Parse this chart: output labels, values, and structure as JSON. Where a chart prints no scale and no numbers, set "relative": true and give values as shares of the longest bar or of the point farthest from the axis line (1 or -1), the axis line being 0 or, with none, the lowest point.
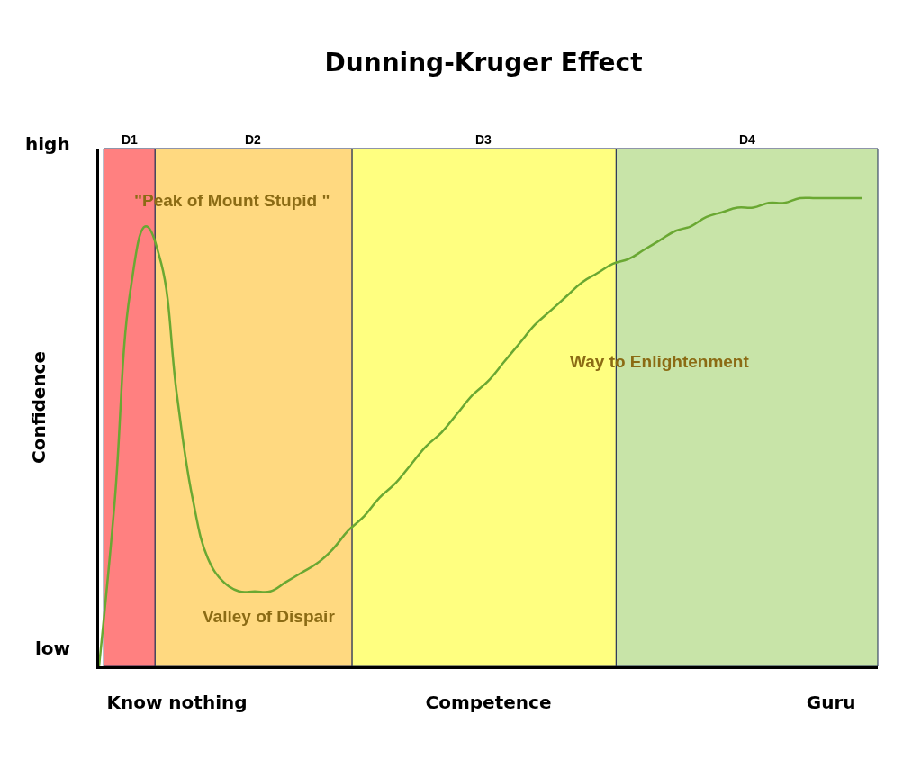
{
  "chart_data": {
    "type": "line",
    "title": "Dunning-Kruger Effect",
    "ylabel": "Confidence",
    "relative": true,
    "categories": [
      null,
      null,
      null,
      null,
      null,
      "Know nothing",
      null,
      null,
      null,
      null,
      null,
      null,
      null,
      null,
      null,
      null,
      null,
      null,
      null,
      null,
      null,
      null,
      null,
      null,
      null,
      "Competence",
      null,
      null,
      null,
      null,
      null,
      null,
      null,
      null,
      null,
      null,
      null,
      null,
      null,
      null,
      null,
      null,
      null,
      null,
      null,
      null,
      null,
      "Guru",
      null,
      null,
      null
    ],
    "series": [
      {
        "color": "#6aa832",
        "values": [
          0,
          0.35,
          0.8,
          0.94,
          0.86,
          0.58,
          0.36,
          0.23,
          0.18,
          0.16,
          0.16,
          0.16,
          0.18,
          0.2,
          0.22,
          0.25,
          0.29,
          0.32,
          0.36,
          0.39,
          0.43,
          0.47,
          0.5,
          0.54,
          0.58,
          0.61,
          0.65,
          0.69,
          0.73,
          0.76,
          0.79,
          0.82,
          0.84,
          0.86,
          0.87,
          0.89,
          0.91,
          0.93,
          0.94,
          0.96,
          0.97,
          0.98,
          0.98,
          0.99,
          0.99,
          1,
          1,
          1,
          1,
          1,
          null
        ]
      }
    ],
    "annotations": [
      "low",
      "high",
      "\"Peak of Mount Stupid \"",
      "Valley of Dispair",
      "Way to Enlightenment",
      "D1",
      "D2",
      "D3",
      "D4"
    ],
    "grid": false,
    "marker": "none",
    "line_style": "solid"
  }
}
